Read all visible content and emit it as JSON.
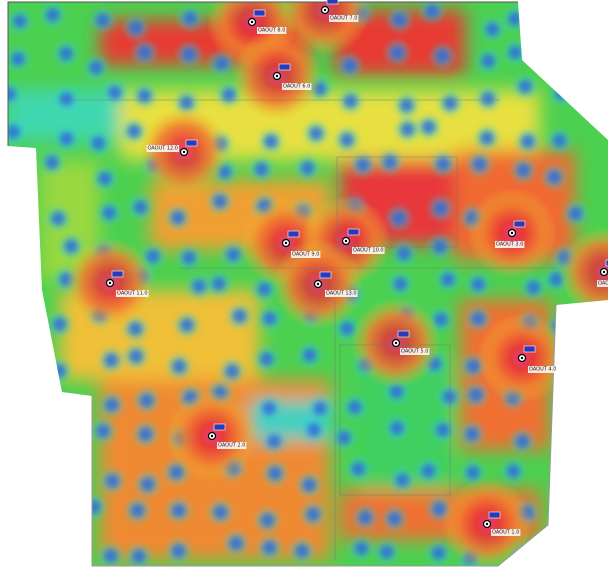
{
  "access_points": [
    {
      "label": "OAOUT 8.0"
    },
    {
      "label": "OAOUT 7.0"
    },
    {
      "label": "OAOUT 6.0"
    },
    {
      "label": "OAOUT 12.0"
    },
    {
      "label": "OAOUT 9.0"
    },
    {
      "label": "OAOUT 10.0"
    },
    {
      "label": "OAOUT 11.0"
    },
    {
      "label": "OAOUT 13.0"
    },
    {
      "label": "OAOUT 3.0"
    },
    {
      "label": "OAOUT 5.0"
    },
    {
      "label": "OAOUT 4.0"
    },
    {
      "label": "OAOUT 2.0"
    },
    {
      "label": "OAOUT 1.0"
    },
    {
      "label": "OAD"
    }
  ]
}
